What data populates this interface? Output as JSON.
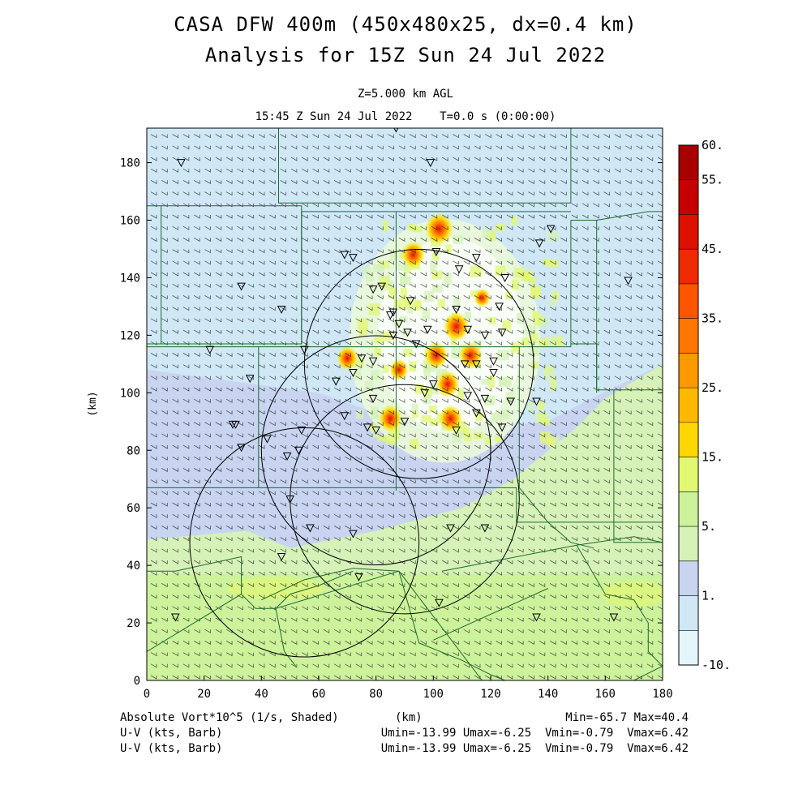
{
  "titles": {
    "line1": "CASA DFW 400m (450x480x25, dx=0.4 km)",
    "line2": "Analysis for 15Z Sun 24 Jul 2022",
    "level": "Z=5.000 km AGL",
    "time": "15:45 Z Sun 24 Jul 2022    T=0.0 s (0:00:00)"
  },
  "footer": {
    "field_label": "Absolute Vort*10^5 (1/s, Shaded)",
    "xunit": "(km)",
    "minmax": "Min=-65.7 Max=40.4",
    "barb1_label": "U-V (kts, Barb)",
    "barb1_stats": "Umin=-13.99 Umax=-6.25  Vmin=-0.79  Vmax=6.42",
    "barb2_label": "U-V (kts, Barb)",
    "barb2_stats": "Umin=-13.99 Umax=-6.25  Vmin=-0.79  Vmax=6.42"
  },
  "chart_data": {
    "type": "heatmap",
    "xlabel": "",
    "ylabel": "(km)",
    "xlim": [
      0,
      180
    ],
    "ylim": [
      0,
      192
    ],
    "xticks": [
      0,
      20,
      40,
      60,
      80,
      100,
      120,
      140,
      160,
      180
    ],
    "yticks": [
      0,
      20,
      40,
      60,
      80,
      100,
      120,
      140,
      160,
      180
    ],
    "colorbar": {
      "labels": [
        "-10.",
        "1.",
        "5.",
        "15.",
        "25.",
        "35.",
        "45.",
        "55.",
        "60."
      ],
      "colors": [
        "#e4f6fb",
        "#d0e8f6",
        "#c8d4f0",
        "#d6f2b8",
        "#cdf29c",
        "#e2f870",
        "#ffd700",
        "#ffb800",
        "#ff9900",
        "#ff7700",
        "#ff5500",
        "#ee2a00",
        "#dd1100",
        "#c60000",
        "#a80000"
      ]
    },
    "radar_rings": [
      {
        "center": [
          95,
          110
        ],
        "radius": 40
      },
      {
        "center": [
          80,
          80
        ],
        "radius": 40
      },
      {
        "center": [
          55,
          48
        ],
        "radius": 40
      },
      {
        "center": [
          90,
          63
        ],
        "radius": 40
      }
    ],
    "vorticity_maxima": [
      {
        "x": 102,
        "y": 157,
        "value": 40
      },
      {
        "x": 93,
        "y": 148,
        "value": 30
      },
      {
        "x": 108,
        "y": 123,
        "value": 35
      },
      {
        "x": 101,
        "y": 113,
        "value": 30
      },
      {
        "x": 113,
        "y": 113,
        "value": 30
      },
      {
        "x": 105,
        "y": 103,
        "value": 30
      },
      {
        "x": 85,
        "y": 91,
        "value": 30
      },
      {
        "x": 106,
        "y": 91,
        "value": 30
      },
      {
        "x": 70,
        "y": 112,
        "value": 25
      },
      {
        "x": 88,
        "y": 108,
        "value": 20
      },
      {
        "x": 117,
        "y": 133,
        "value": 15
      }
    ],
    "stations": [
      [
        12,
        180
      ],
      [
        99,
        180
      ],
      [
        87,
        192
      ],
      [
        33,
        137
      ],
      [
        47,
        129
      ],
      [
        69,
        148
      ],
      [
        72,
        147
      ],
      [
        55,
        115
      ],
      [
        36,
        105
      ],
      [
        22,
        115
      ],
      [
        31,
        89
      ],
      [
        30,
        89
      ],
      [
        33,
        81
      ],
      [
        49,
        78
      ],
      [
        53,
        80
      ],
      [
        54,
        87
      ],
      [
        42,
        84
      ],
      [
        50,
        63
      ],
      [
        57,
        53
      ],
      [
        47,
        43
      ],
      [
        72,
        51
      ],
      [
        74,
        36
      ],
      [
        102,
        27
      ],
      [
        118,
        53
      ],
      [
        106,
        53
      ],
      [
        136,
        22
      ],
      [
        163,
        22
      ],
      [
        10,
        22
      ],
      [
        86,
        128
      ],
      [
        79,
        136
      ],
      [
        82,
        137
      ],
      [
        85,
        127
      ],
      [
        75,
        112
      ],
      [
        79,
        111
      ],
      [
        72,
        107
      ],
      [
        66,
        104
      ],
      [
        69,
        92
      ],
      [
        79,
        98
      ],
      [
        77,
        88
      ],
      [
        88,
        124
      ],
      [
        86,
        120
      ],
      [
        91,
        121
      ],
      [
        92,
        132
      ],
      [
        101,
        149
      ],
      [
        109,
        143
      ],
      [
        115,
        147
      ],
      [
        125,
        140
      ],
      [
        108,
        129
      ],
      [
        112,
        122
      ],
      [
        118,
        120
      ],
      [
        124,
        121
      ],
      [
        115,
        110
      ],
      [
        121,
        107
      ],
      [
        127,
        97
      ],
      [
        118,
        98
      ],
      [
        124,
        88
      ],
      [
        136,
        97
      ],
      [
        141,
        157
      ],
      [
        137,
        152
      ],
      [
        168,
        139
      ],
      [
        111,
        110
      ],
      [
        112,
        99
      ],
      [
        115,
        93
      ],
      [
        97,
        100
      ],
      [
        90,
        90
      ],
      [
        80,
        87
      ],
      [
        108,
        87
      ],
      [
        100,
        103
      ],
      [
        94,
        117
      ],
      [
        121,
        111
      ],
      [
        123,
        130
      ],
      [
        98,
        122
      ]
    ]
  }
}
